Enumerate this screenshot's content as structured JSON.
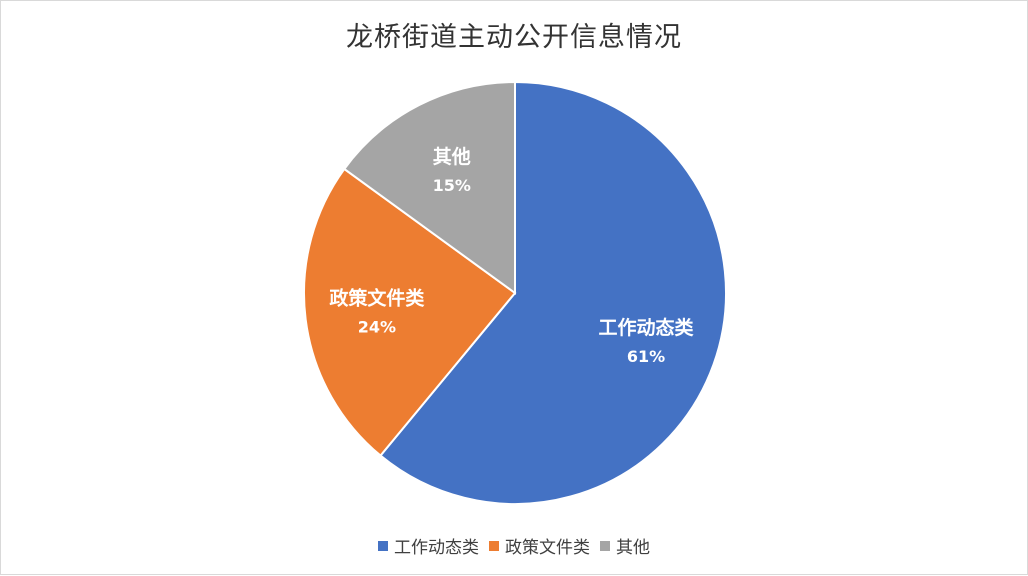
{
  "chart_data": {
    "type": "pie",
    "title": "龙桥街道主动公开信息情况",
    "categories": [
      "工作动态类",
      "政策文件类",
      "其他"
    ],
    "values": [
      61,
      24,
      15
    ],
    "value_labels": [
      "61%",
      "24%",
      "15%"
    ],
    "colors": [
      "#4472C4",
      "#ED7D31",
      "#A5A5A5"
    ],
    "start_angle_deg": 0,
    "direction": "clockwise",
    "legend": {
      "position": "bottom",
      "items": [
        "工作动态类",
        "政策文件类",
        "其他"
      ]
    }
  }
}
